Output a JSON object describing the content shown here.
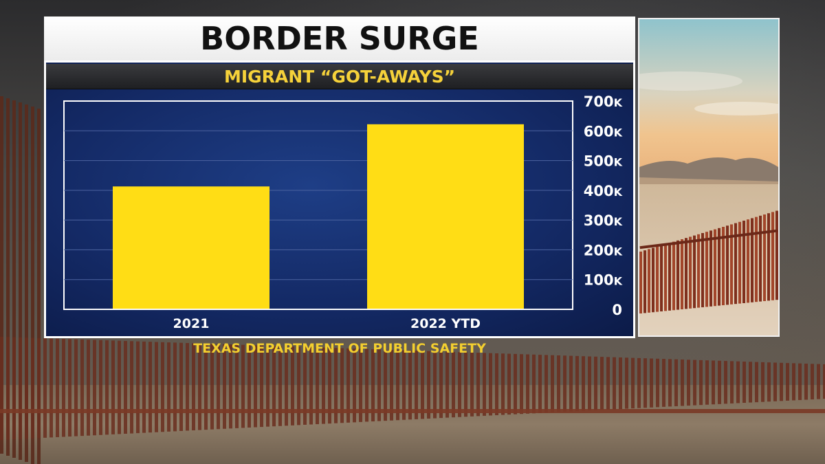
{
  "headline": "BORDER SURGE",
  "subheadline": "MIGRANT “GOT-AWAYS”",
  "source": "TEXAS DEPARTMENT OF PUBLIC SAFETY",
  "colors": {
    "bar": "#ffdd15",
    "chart_bg": "#142a66",
    "subhead_text": "#f6d23a",
    "source_text": "#f3cf2f",
    "axis_text": "#ffffff"
  },
  "chart_data": {
    "type": "bar",
    "categories": [
      "2021",
      "2022 YTD"
    ],
    "values": [
      413000,
      622000
    ],
    "ylim": [
      0,
      700000
    ],
    "yticks": [
      0,
      100000,
      200000,
      300000,
      400000,
      500000,
      600000,
      700000
    ],
    "ytick_labels": [
      "0",
      "100K",
      "200K",
      "300K",
      "400K",
      "500K",
      "600K",
      "700K"
    ],
    "axis_position": "right",
    "grid": true
  }
}
